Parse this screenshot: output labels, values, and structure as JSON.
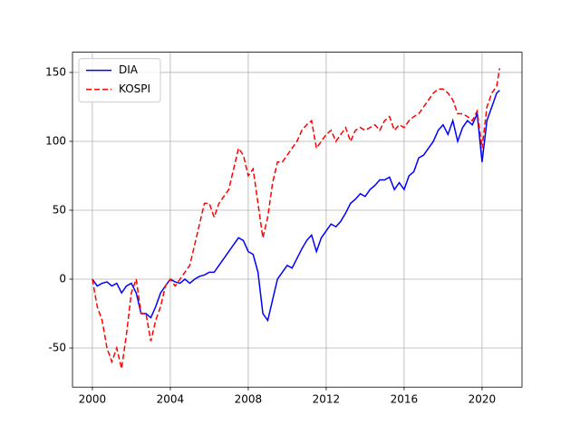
{
  "chart_data": {
    "type": "line",
    "x": [
      2000,
      2000.25,
      2000.5,
      2000.75,
      2001,
      2001.25,
      2001.5,
      2001.75,
      2002,
      2002.25,
      2002.5,
      2002.75,
      2003,
      2003.25,
      2003.5,
      2003.75,
      2004,
      2004.25,
      2004.5,
      2004.75,
      2005,
      2005.25,
      2005.5,
      2005.75,
      2006,
      2006.25,
      2006.5,
      2006.75,
      2007,
      2007.25,
      2007.5,
      2007.75,
      2008,
      2008.25,
      2008.5,
      2008.75,
      2009,
      2009.25,
      2009.5,
      2009.75,
      2010,
      2010.25,
      2010.5,
      2010.75,
      2011,
      2011.25,
      2011.5,
      2011.75,
      2012,
      2012.25,
      2012.5,
      2012.75,
      2013,
      2013.25,
      2013.5,
      2013.75,
      2014,
      2014.25,
      2014.5,
      2014.75,
      2015,
      2015.25,
      2015.5,
      2015.75,
      2016,
      2016.25,
      2016.5,
      2016.75,
      2017,
      2017.25,
      2017.5,
      2017.75,
      2018,
      2018.25,
      2018.5,
      2018.75,
      2019,
      2019.25,
      2019.5,
      2019.75,
      2020,
      2020.25,
      2020.5,
      2020.75,
      2020.9
    ],
    "series": [
      {
        "name": "DIA",
        "color": "#0000ff",
        "linestyle": "solid",
        "values": [
          0,
          -5,
          -3,
          -2,
          -5,
          -3,
          -10,
          -5,
          -3,
          -10,
          -25,
          -25,
          -28,
          -20,
          -10,
          -5,
          0,
          -2,
          -3,
          0,
          -3,
          0,
          2,
          3,
          5,
          5,
          10,
          15,
          20,
          25,
          30,
          28,
          20,
          18,
          5,
          -25,
          -30,
          -15,
          0,
          5,
          10,
          8,
          15,
          22,
          28,
          32,
          20,
          30,
          35,
          40,
          38,
          42,
          48,
          55,
          58,
          62,
          60,
          65,
          68,
          72,
          72,
          74,
          65,
          70,
          65,
          75,
          78,
          88,
          90,
          95,
          100,
          108,
          112,
          105,
          115,
          100,
          110,
          115,
          112,
          120,
          85,
          115,
          125,
          135,
          137
        ]
      },
      {
        "name": "KOSPI",
        "color": "#ff0000",
        "linestyle": "dashed",
        "values": [
          0,
          -20,
          -30,
          -50,
          -60,
          -50,
          -65,
          -40,
          -10,
          0,
          -25,
          -25,
          -45,
          -30,
          -20,
          -5,
          0,
          -5,
          0,
          5,
          10,
          25,
          40,
          55,
          55,
          45,
          55,
          60,
          65,
          80,
          95,
          90,
          75,
          80,
          55,
          30,
          45,
          70,
          85,
          85,
          90,
          95,
          100,
          108,
          112,
          115,
          95,
          100,
          105,
          108,
          100,
          105,
          110,
          100,
          108,
          110,
          108,
          110,
          112,
          108,
          115,
          118,
          108,
          112,
          110,
          115,
          118,
          120,
          125,
          130,
          135,
          138,
          138,
          135,
          130,
          120,
          120,
          118,
          115,
          122,
          95,
          125,
          135,
          140,
          153
        ]
      }
    ],
    "xlim": [
      1998.98,
      2022.05
    ],
    "xticks": [
      2000,
      2004,
      2008,
      2012,
      2016,
      2020
    ],
    "ylim": [
      -78.4,
      164.7
    ],
    "yticks": [
      -50,
      0,
      50,
      100,
      150
    ],
    "grid": true,
    "legend": "upper-left"
  }
}
